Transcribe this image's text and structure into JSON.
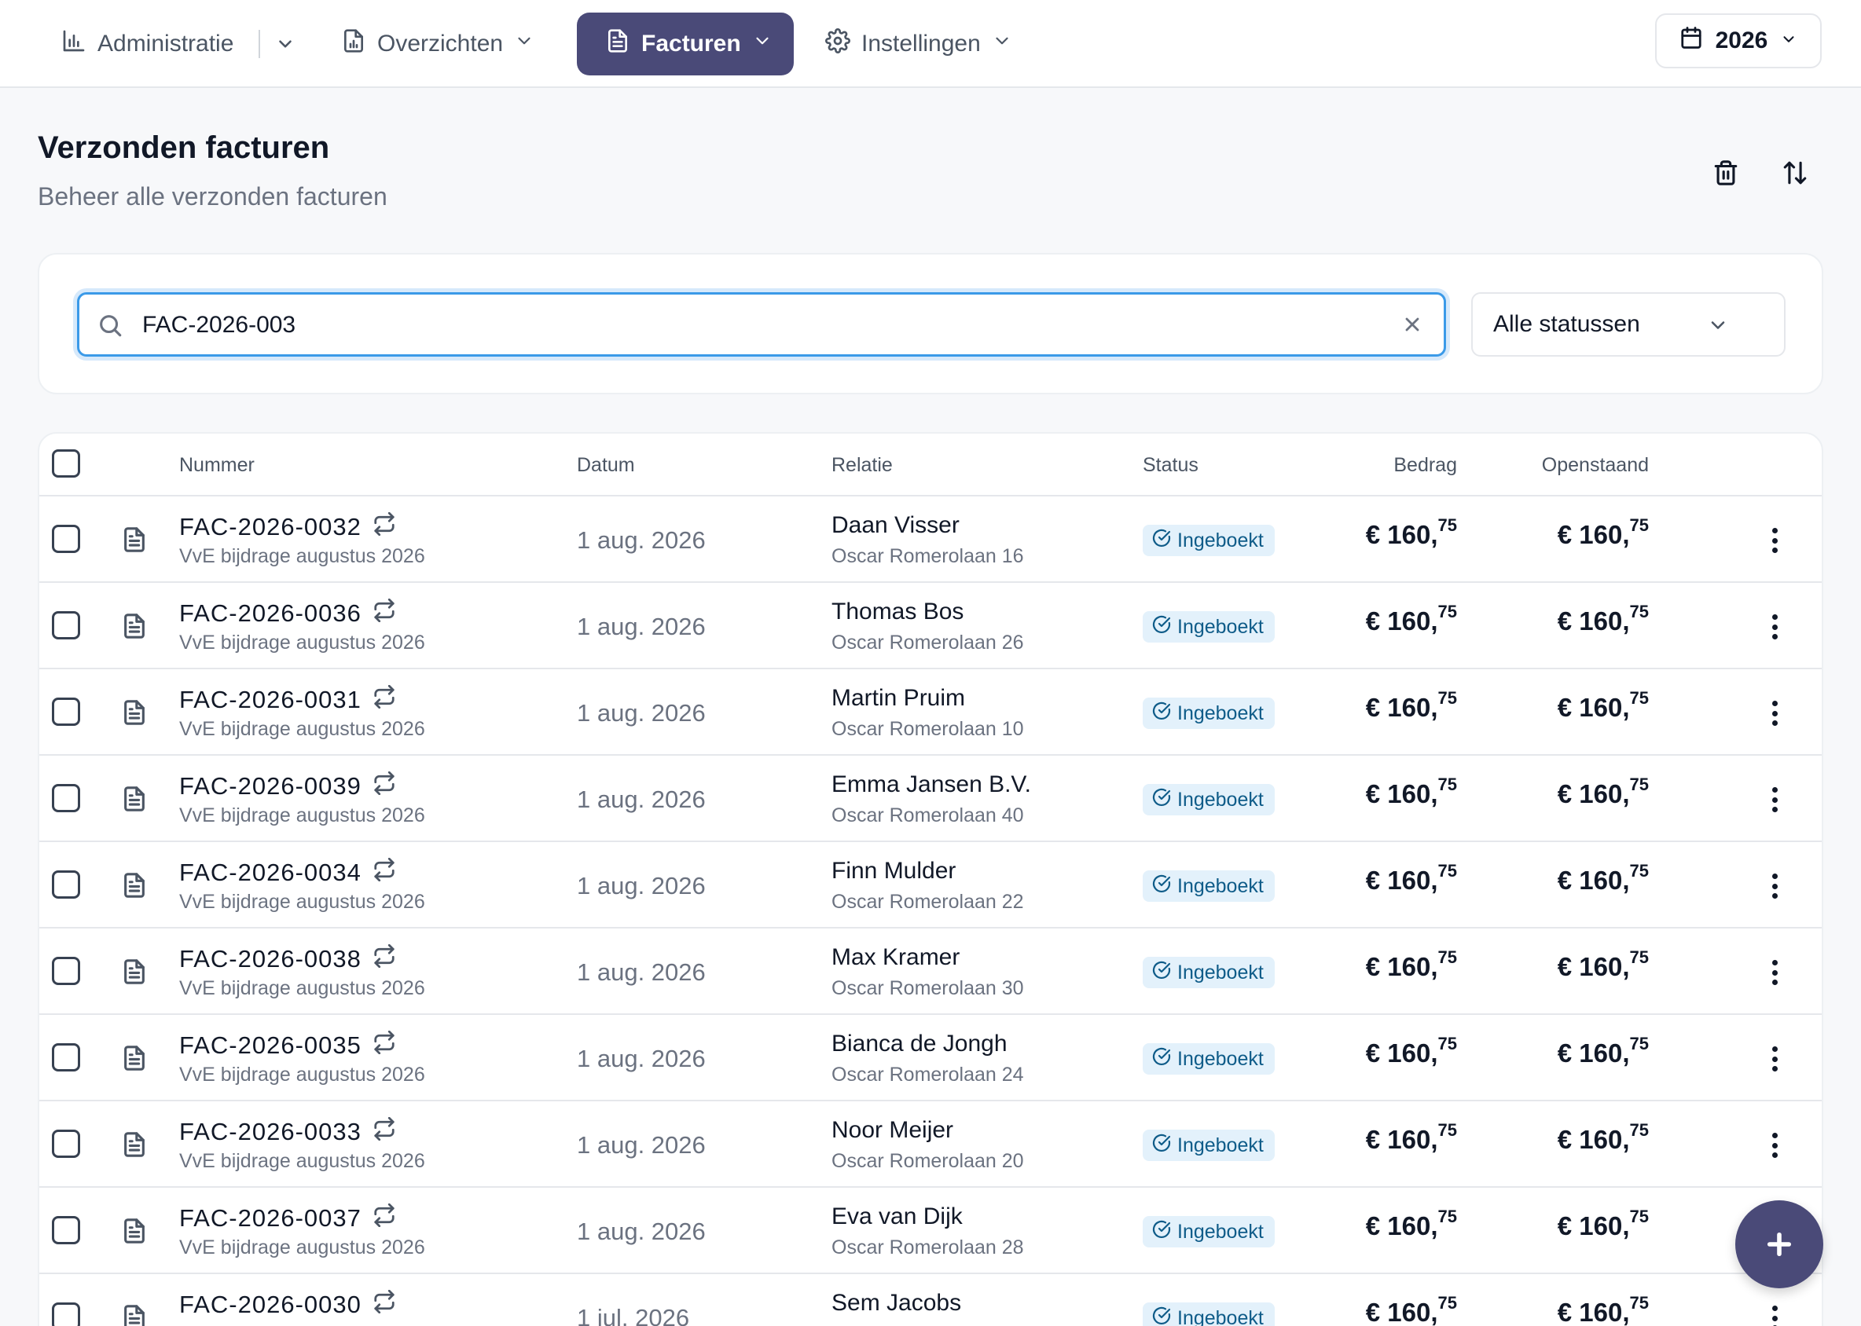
{
  "nav": {
    "administratie": "Administratie",
    "overzichten": "Overzichten",
    "facturen": "Facturen",
    "instellingen": "Instellingen",
    "year": "2026"
  },
  "header": {
    "title": "Verzonden facturen",
    "subtitle": "Beheer alle verzonden facturen"
  },
  "filters": {
    "search_value": "FAC-2026-003",
    "status_selected": "Alle statussen"
  },
  "table": {
    "columns": {
      "nummer": "Nummer",
      "datum": "Datum",
      "relatie": "Relatie",
      "status": "Status",
      "bedrag": "Bedrag",
      "openstaand": "Openstaand"
    },
    "rows": [
      {
        "nummer": "FAC-2026-0032",
        "omschrijving": "VvE bijdrage augustus 2026",
        "datum": "1 aug. 2026",
        "relatie": "Daan Visser",
        "adres": "Oscar Romerolaan 16",
        "status": "Ingeboekt",
        "bedrag_main": "€ 160,",
        "bedrag_cents": "75",
        "open_main": "€ 160,",
        "open_cents": "75"
      },
      {
        "nummer": "FAC-2026-0036",
        "omschrijving": "VvE bijdrage augustus 2026",
        "datum": "1 aug. 2026",
        "relatie": "Thomas Bos",
        "adres": "Oscar Romerolaan 26",
        "status": "Ingeboekt",
        "bedrag_main": "€ 160,",
        "bedrag_cents": "75",
        "open_main": "€ 160,",
        "open_cents": "75"
      },
      {
        "nummer": "FAC-2026-0031",
        "omschrijving": "VvE bijdrage augustus 2026",
        "datum": "1 aug. 2026",
        "relatie": "Martin Pruim",
        "adres": "Oscar Romerolaan 10",
        "status": "Ingeboekt",
        "bedrag_main": "€ 160,",
        "bedrag_cents": "75",
        "open_main": "€ 160,",
        "open_cents": "75"
      },
      {
        "nummer": "FAC-2026-0039",
        "omschrijving": "VvE bijdrage augustus 2026",
        "datum": "1 aug. 2026",
        "relatie": "Emma Jansen B.V.",
        "adres": "Oscar Romerolaan 40",
        "status": "Ingeboekt",
        "bedrag_main": "€ 160,",
        "bedrag_cents": "75",
        "open_main": "€ 160,",
        "open_cents": "75"
      },
      {
        "nummer": "FAC-2026-0034",
        "omschrijving": "VvE bijdrage augustus 2026",
        "datum": "1 aug. 2026",
        "relatie": "Finn Mulder",
        "adres": "Oscar Romerolaan 22",
        "status": "Ingeboekt",
        "bedrag_main": "€ 160,",
        "bedrag_cents": "75",
        "open_main": "€ 160,",
        "open_cents": "75"
      },
      {
        "nummer": "FAC-2026-0038",
        "omschrijving": "VvE bijdrage augustus 2026",
        "datum": "1 aug. 2026",
        "relatie": "Max Kramer",
        "adres": "Oscar Romerolaan 30",
        "status": "Ingeboekt",
        "bedrag_main": "€ 160,",
        "bedrag_cents": "75",
        "open_main": "€ 160,",
        "open_cents": "75"
      },
      {
        "nummer": "FAC-2026-0035",
        "omschrijving": "VvE bijdrage augustus 2026",
        "datum": "1 aug. 2026",
        "relatie": "Bianca de Jongh",
        "adres": "Oscar Romerolaan 24",
        "status": "Ingeboekt",
        "bedrag_main": "€ 160,",
        "bedrag_cents": "75",
        "open_main": "€ 160,",
        "open_cents": "75"
      },
      {
        "nummer": "FAC-2026-0033",
        "omschrijving": "VvE bijdrage augustus 2026",
        "datum": "1 aug. 2026",
        "relatie": "Noor Meijer",
        "adres": "Oscar Romerolaan 20",
        "status": "Ingeboekt",
        "bedrag_main": "€ 160,",
        "bedrag_cents": "75",
        "open_main": "€ 160,",
        "open_cents": "75"
      },
      {
        "nummer": "FAC-2026-0037",
        "omschrijving": "VvE bijdrage augustus 2026",
        "datum": "1 aug. 2026",
        "relatie": "Eva van Dijk",
        "adres": "Oscar Romerolaan 28",
        "status": "Ingeboekt",
        "bedrag_main": "€ 160,",
        "bedrag_cents": "75",
        "open_main": "€ 160,",
        "open_cents": "75"
      },
      {
        "nummer": "FAC-2026-0030",
        "omschrijving": "",
        "datum": "1 jul. 2026",
        "relatie": "Sem Jacobs",
        "adres": "",
        "status": "Ingeboekt",
        "bedrag_main": "€ 160,",
        "bedrag_cents": "75",
        "open_main": "€ 160,",
        "open_cents": "75"
      }
    ]
  },
  "colors": {
    "accent": "#4a4a78",
    "badge_bg": "#e3f1fb",
    "badge_text": "#0f5c89",
    "focus_ring": "#3b9ae8"
  },
  "icons": {
    "nav_administratie": "bar-chart-icon",
    "nav_overzichten": "file-chart-icon",
    "nav_facturen": "file-text-icon",
    "nav_instellingen": "gear-icon",
    "year": "calendar-icon",
    "delete": "trash-icon",
    "sort": "sort-arrows-icon",
    "search": "search-icon",
    "clear": "close-icon",
    "row_doc": "document-icon",
    "recurring": "repeat-icon",
    "status": "check-circle-icon",
    "row_menu": "kebab-menu-icon",
    "add": "plus-icon"
  }
}
